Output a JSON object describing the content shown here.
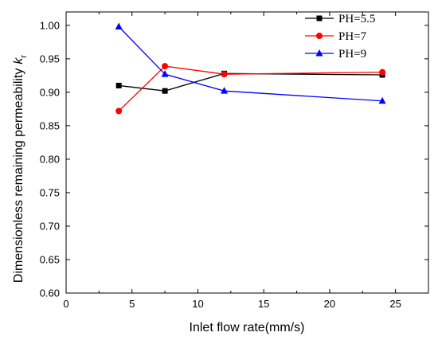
{
  "chart_data": {
    "type": "line",
    "xlabel": "Inlet flow rate(mm/s)",
    "ylabel": "Dimensionless remaining permeability",
    "ylabel_symbol": "k",
    "ylabel_subscript": "r",
    "xlim": [
      0,
      27.5
    ],
    "ylim": [
      0.6,
      1.02
    ],
    "xticks": [
      0,
      5,
      10,
      15,
      20,
      25
    ],
    "yticks": [
      0.6,
      0.65,
      0.7,
      0.75,
      0.8,
      0.85,
      0.9,
      0.95,
      1.0
    ],
    "grid": false,
    "legend_position": "top-right",
    "x": [
      4,
      7.5,
      12,
      24
    ],
    "series": [
      {
        "name": "PH=5.5",
        "values": [
          0.91,
          0.902,
          0.928,
          0.926
        ],
        "color": "#000000",
        "marker": "square"
      },
      {
        "name": "PH=7",
        "values": [
          0.872,
          0.939,
          0.927,
          0.93
        ],
        "color": "#ff0000",
        "marker": "circle"
      },
      {
        "name": "PH=9",
        "values": [
          0.998,
          0.927,
          0.902,
          0.887
        ],
        "color": "#0000ff",
        "marker": "triangle"
      }
    ]
  }
}
